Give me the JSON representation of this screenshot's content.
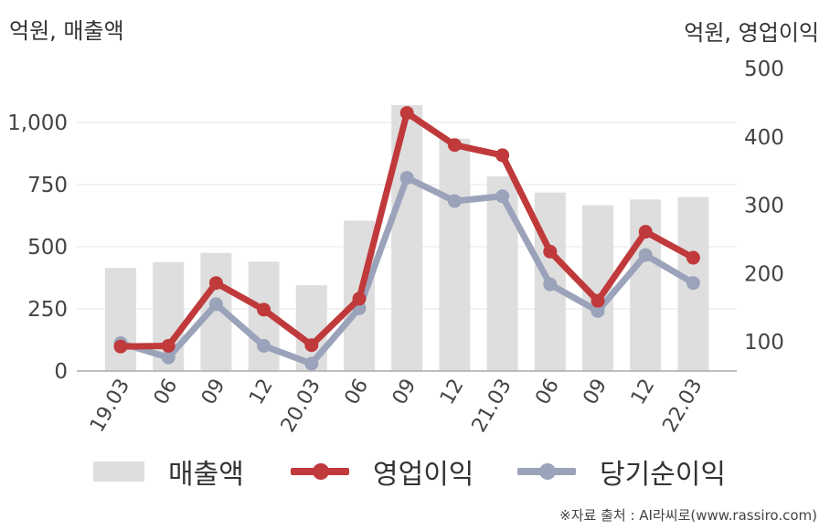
{
  "chart_data": {
    "type": "bar+line",
    "left_axis_unit": "억원, 매출액",
    "right_axis_unit": "억원, 영업이익",
    "categories": [
      "19.03",
      "06",
      "09",
      "12",
      "20.03",
      "06",
      "09",
      "12",
      "21.03",
      "06",
      "09",
      "12",
      "22.03"
    ],
    "left_axis": {
      "ticks": [
        0,
        250,
        500,
        750,
        1000
      ],
      "tick_labels": [
        "0",
        "250",
        "500",
        "750",
        "1,000"
      ],
      "ylim": [
        0,
        1200
      ]
    },
    "right_axis": {
      "ticks": [
        100,
        200,
        300,
        400,
        500
      ],
      "tick_labels": [
        "100",
        "200",
        "300",
        "400",
        "500"
      ],
      "ylim": [
        55,
        500
      ]
    },
    "series": [
      {
        "name": "매출액",
        "type": "bar",
        "axis": "left",
        "color": "#dedede",
        "values": [
          415,
          438,
          475,
          440,
          345,
          605,
          1070,
          935,
          783,
          718,
          667,
          690,
          700
        ]
      },
      {
        "name": "영업이익",
        "type": "line",
        "axis": "right",
        "color": "#c0393b",
        "values": [
          93,
          94,
          186,
          147,
          95,
          163,
          435,
          388,
          373,
          232,
          160,
          261,
          223
        ]
      },
      {
        "name": "당기순이익",
        "type": "line",
        "axis": "right",
        "color": "#9aa3ba",
        "values": [
          98,
          77,
          155,
          94,
          68,
          149,
          340,
          306,
          313,
          184,
          145,
          227,
          186
        ]
      }
    ],
    "grid": true,
    "legend_position": "bottom"
  },
  "source": "※자료 출처 : AI라씨로(www.rassiro.com)"
}
